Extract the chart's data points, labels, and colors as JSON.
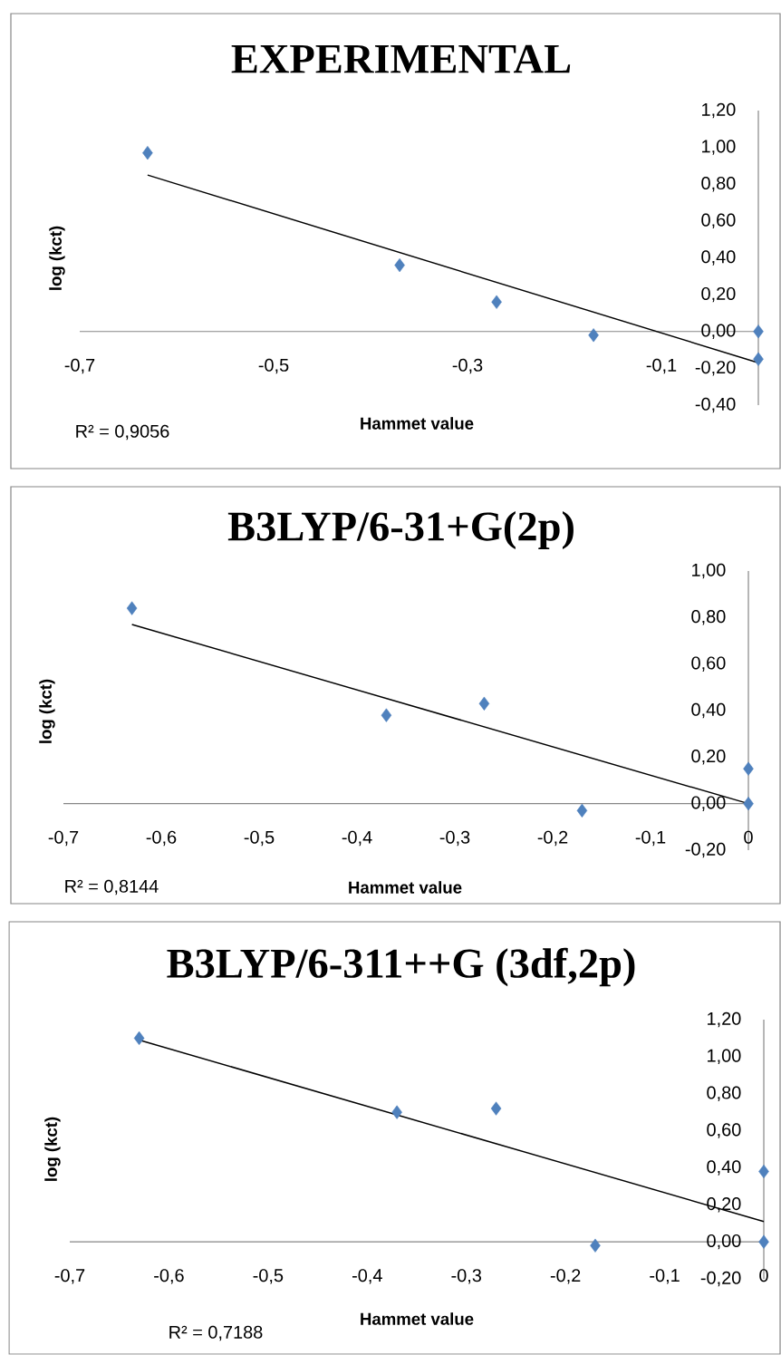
{
  "chart_data": [
    {
      "type": "scatter",
      "title": "EXPERIMENTAL",
      "xlabel": "Hammet value",
      "ylabel": "log (kct)",
      "annotations": [
        "R² = 0,9056"
      ],
      "xlim": [
        -0.7,
        0
      ],
      "ylim": [
        -0.4,
        1.2
      ],
      "xticks": [
        {
          "value": -0.7,
          "label": "-0,7"
        },
        {
          "value": -0.5,
          "label": "-0,5"
        },
        {
          "value": -0.3,
          "label": "-0,3"
        },
        {
          "value": -0.1,
          "label": "-0,1"
        }
      ],
      "yticks": [
        {
          "value": -0.4,
          "label": "-0,40"
        },
        {
          "value": -0.2,
          "label": "-0,20"
        },
        {
          "value": 0,
          "label": "0,00"
        },
        {
          "value": 0.2,
          "label": "0,20"
        },
        {
          "value": 0.4,
          "label": "0,40"
        },
        {
          "value": 0.6,
          "label": "0,60"
        },
        {
          "value": 0.8,
          "label": "0,80"
        },
        {
          "value": 1.0,
          "label": "1,00"
        },
        {
          "value": 1.2,
          "label": "1,20"
        }
      ],
      "series": [
        {
          "marker": "diamond",
          "color": "#4f81bd",
          "x": [
            -0.63,
            -0.37,
            -0.27,
            -0.17,
            0,
            0
          ],
          "values": [
            0.97,
            0.36,
            0.16,
            -0.02,
            0.0,
            -0.15
          ]
        },
        {
          "type": "line",
          "color": "#000000",
          "x": [
            -0.63,
            0
          ],
          "values": [
            0.85,
            -0.17
          ]
        }
      ]
    },
    {
      "type": "scatter",
      "title": "B3LYP/6-31+G(2p)",
      "xlabel": "Hammet value",
      "ylabel": "log (kct)",
      "annotations": [
        "R² = 0,8144"
      ],
      "xlim": [
        -0.7,
        0
      ],
      "ylim": [
        -0.2,
        1.0
      ],
      "xticks": [
        {
          "value": -0.7,
          "label": "-0,7"
        },
        {
          "value": -0.6,
          "label": "-0,6"
        },
        {
          "value": -0.5,
          "label": "-0,5"
        },
        {
          "value": -0.4,
          "label": "-0,4"
        },
        {
          "value": -0.3,
          "label": "-0,3"
        },
        {
          "value": -0.2,
          "label": "-0,2"
        },
        {
          "value": -0.1,
          "label": "-0,1"
        },
        0
      ],
      "yticks": [
        {
          "value": -0.2,
          "label": "-0,20"
        },
        {
          "value": 0,
          "label": "0,00"
        },
        {
          "value": 0.2,
          "label": "0,20"
        },
        {
          "value": 0.4,
          "label": "0,40"
        },
        {
          "value": 0.6,
          "label": "0,60"
        },
        {
          "value": 0.8,
          "label": "0,80"
        },
        {
          "value": 1.0,
          "label": "1,00"
        }
      ],
      "series": [
        {
          "marker": "diamond",
          "color": "#4f81bd",
          "x": [
            -0.63,
            -0.37,
            -0.27,
            -0.17,
            0,
            0
          ],
          "values": [
            0.84,
            0.38,
            0.43,
            -0.03,
            0.15,
            0.0
          ]
        },
        {
          "type": "line",
          "color": "#000000",
          "x": [
            -0.63,
            0
          ],
          "values": [
            0.77,
            0.0
          ]
        }
      ]
    },
    {
      "type": "scatter",
      "title": "B3LYP/6-311++G (3df,2p)",
      "xlabel": "Hammet value",
      "ylabel": "log (kct)",
      "annotations": [
        "R² = 0,7188"
      ],
      "xlim": [
        -0.7,
        0
      ],
      "ylim": [
        -0.2,
        1.2
      ],
      "xticks": [
        {
          "value": -0.7,
          "label": "-0,7"
        },
        {
          "value": -0.6,
          "label": "-0,6"
        },
        {
          "value": -0.5,
          "label": "-0,5"
        },
        {
          "value": -0.4,
          "label": "-0,4"
        },
        {
          "value": -0.3,
          "label": "-0,3"
        },
        {
          "value": -0.2,
          "label": "-0,2"
        },
        {
          "value": -0.1,
          "label": "-0,1"
        },
        0
      ],
      "yticks": [
        {
          "value": -0.2,
          "label": "-0,20"
        },
        {
          "value": 0,
          "label": "0,00"
        },
        {
          "value": 0.2,
          "label": "0,20"
        },
        {
          "value": 0.4,
          "label": "0,40"
        },
        {
          "value": 0.6,
          "label": "0,60"
        },
        {
          "value": 0.8,
          "label": "0,80"
        },
        {
          "value": 1.0,
          "label": "1,00"
        },
        {
          "value": 1.2,
          "label": "1,20"
        }
      ],
      "series": [
        {
          "marker": "diamond",
          "color": "#4f81bd",
          "x": [
            -0.63,
            -0.37,
            -0.27,
            -0.17,
            0,
            0
          ],
          "values": [
            1.1,
            0.7,
            0.72,
            -0.02,
            0.38,
            0.0
          ]
        },
        {
          "type": "line",
          "color": "#000000",
          "x": [
            -0.63,
            0
          ],
          "values": [
            1.09,
            0.11
          ]
        }
      ]
    }
  ]
}
